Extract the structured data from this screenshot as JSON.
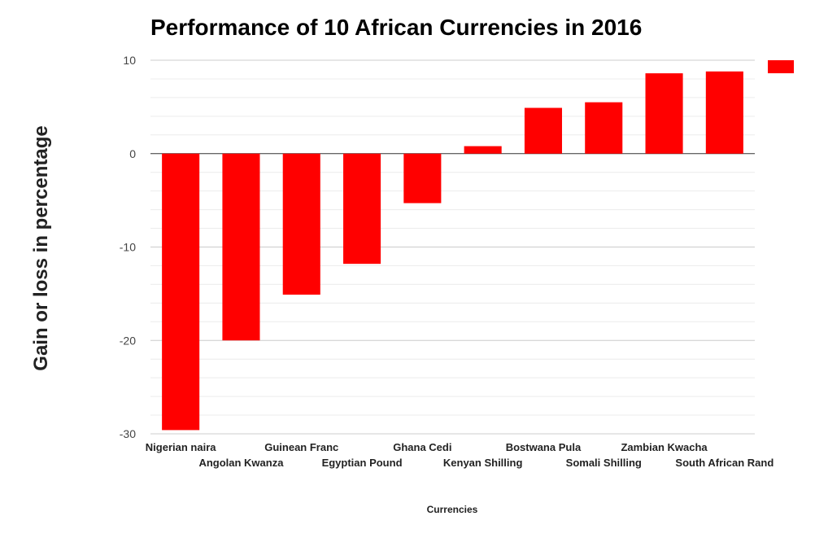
{
  "chart_data": {
    "type": "bar",
    "title": "Performance of 10 African Currencies in 2016",
    "xlabel": "Currencies",
    "ylabel": "Gain or loss in percentage",
    "categories": [
      "Nigerian naira",
      "Angolan Kwanza",
      "Guinean Franc",
      "Egyptian Pound",
      "Ghana Cedi",
      "Kenyan Shilling",
      "Bostwana Pula",
      "Somali Shilling",
      "Zambian Kwacha",
      "South African Rand"
    ],
    "values": [
      -29.6,
      -20,
      -15.1,
      -11.8,
      -5.3,
      0.8,
      4.9,
      5.5,
      8.6,
      8.8
    ],
    "ylim": [
      -30,
      10
    ],
    "yticks": [
      10,
      0,
      -10,
      -20,
      -30
    ],
    "grid": true,
    "legend": "right",
    "bar_color": "#ff0000"
  }
}
